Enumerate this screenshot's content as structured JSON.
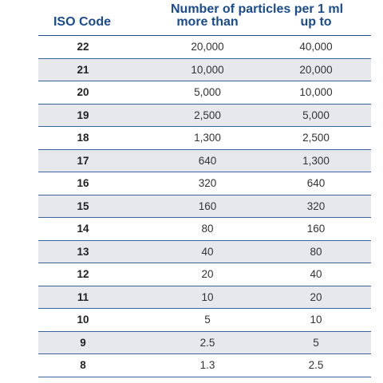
{
  "table": {
    "headers": {
      "iso_code": "ISO Code",
      "group_title": "Number of particles per 1 ml",
      "more_than": "more than",
      "up_to": "up to"
    },
    "rows": [
      {
        "iso": "22",
        "more_than": "20,000",
        "up_to": "40,000"
      },
      {
        "iso": "21",
        "more_than": "10,000",
        "up_to": "20,000"
      },
      {
        "iso": "20",
        "more_than": "5,000",
        "up_to": "10,000"
      },
      {
        "iso": "19",
        "more_than": "2,500",
        "up_to": "5,000"
      },
      {
        "iso": "18",
        "more_than": "1,300",
        "up_to": "2,500"
      },
      {
        "iso": "17",
        "more_than": "640",
        "up_to": "1,300"
      },
      {
        "iso": "16",
        "more_than": "320",
        "up_to": "640"
      },
      {
        "iso": "15",
        "more_than": "160",
        "up_to": "320"
      },
      {
        "iso": "14",
        "more_than": "80",
        "up_to": "160"
      },
      {
        "iso": "13",
        "more_than": "40",
        "up_to": "80"
      },
      {
        "iso": "12",
        "more_than": "20",
        "up_to": "40"
      },
      {
        "iso": "11",
        "more_than": "10",
        "up_to": "20"
      },
      {
        "iso": "10",
        "more_than": "5",
        "up_to": "10"
      },
      {
        "iso": "9",
        "more_than": "2.5",
        "up_to": "5"
      },
      {
        "iso": "8",
        "more_than": "1.3",
        "up_to": "2.5"
      }
    ]
  },
  "colors": {
    "header_text": "#1b4b8f",
    "row_shade": "#e7e8ec",
    "rule": "#3a62a0"
  }
}
